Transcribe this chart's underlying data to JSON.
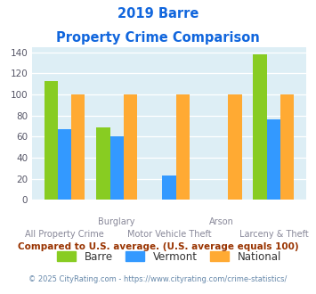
{
  "title_line1": "2019 Barre",
  "title_line2": "Property Crime Comparison",
  "categories": [
    "All Property Crime",
    "Burglary",
    "Motor Vehicle Theft",
    "Arson",
    "Larceny & Theft"
  ],
  "top_labels": [
    "",
    "Burglary",
    "",
    "Arson",
    ""
  ],
  "bottom_labels": [
    "All Property Crime",
    "",
    "Motor Vehicle Theft",
    "",
    "Larceny & Theft"
  ],
  "barre": [
    113,
    69,
    0,
    0,
    138
  ],
  "vermont": [
    67,
    60,
    23,
    0,
    76
  ],
  "national": [
    100,
    100,
    100,
    100,
    100
  ],
  "barre_color": "#88cc22",
  "vermont_color": "#3399ff",
  "national_color": "#ffaa33",
  "bg_color": "#ddeef5",
  "title_color": "#1166dd",
  "label_color": "#888899",
  "ylim": [
    0,
    145
  ],
  "yticks": [
    0,
    20,
    40,
    60,
    80,
    100,
    120,
    140
  ],
  "legend_labels": [
    "Barre",
    "Vermont",
    "National"
  ],
  "footnote1": "Compared to U.S. average. (U.S. average equals 100)",
  "footnote2": "© 2025 CityRating.com - https://www.cityrating.com/crime-statistics/",
  "footnote1_color": "#993300",
  "footnote2_color": "#6688aa"
}
